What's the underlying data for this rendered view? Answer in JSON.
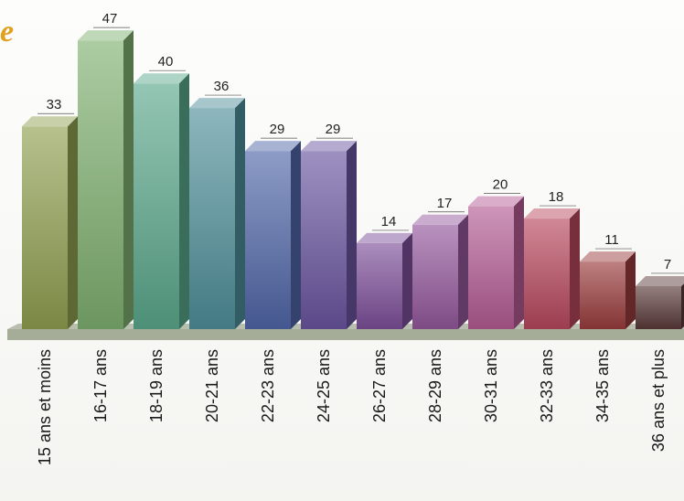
{
  "header": {
    "title_fragment": "e"
  },
  "chart_data": {
    "type": "bar",
    "title": "",
    "xlabel": "",
    "ylabel": "",
    "categories": [
      "15 ans et moins",
      "16-17 ans",
      "18-19 ans",
      "20-21 ans",
      "22-23 ans",
      "24-25 ans",
      "26-27 ans",
      "28-29 ans",
      "30-31 ans",
      "32-33 ans",
      "34-35 ans",
      "36 ans et plus"
    ],
    "values": [
      33,
      47,
      40,
      36,
      29,
      29,
      14,
      17,
      20,
      18,
      11,
      7
    ],
    "ylim": [
      0,
      50
    ],
    "grid": false,
    "legend": "none",
    "bar_colors": [
      "#8fa050",
      "#7fb070",
      "#5aa88c",
      "#4f8f9a",
      "#5066a8",
      "#6a55a0",
      "#7d4f9a",
      "#94589c",
      "#b45c94",
      "#b8485e",
      "#9a3c3c",
      "#5a3a3a"
    ],
    "style": "3d-bars"
  }
}
